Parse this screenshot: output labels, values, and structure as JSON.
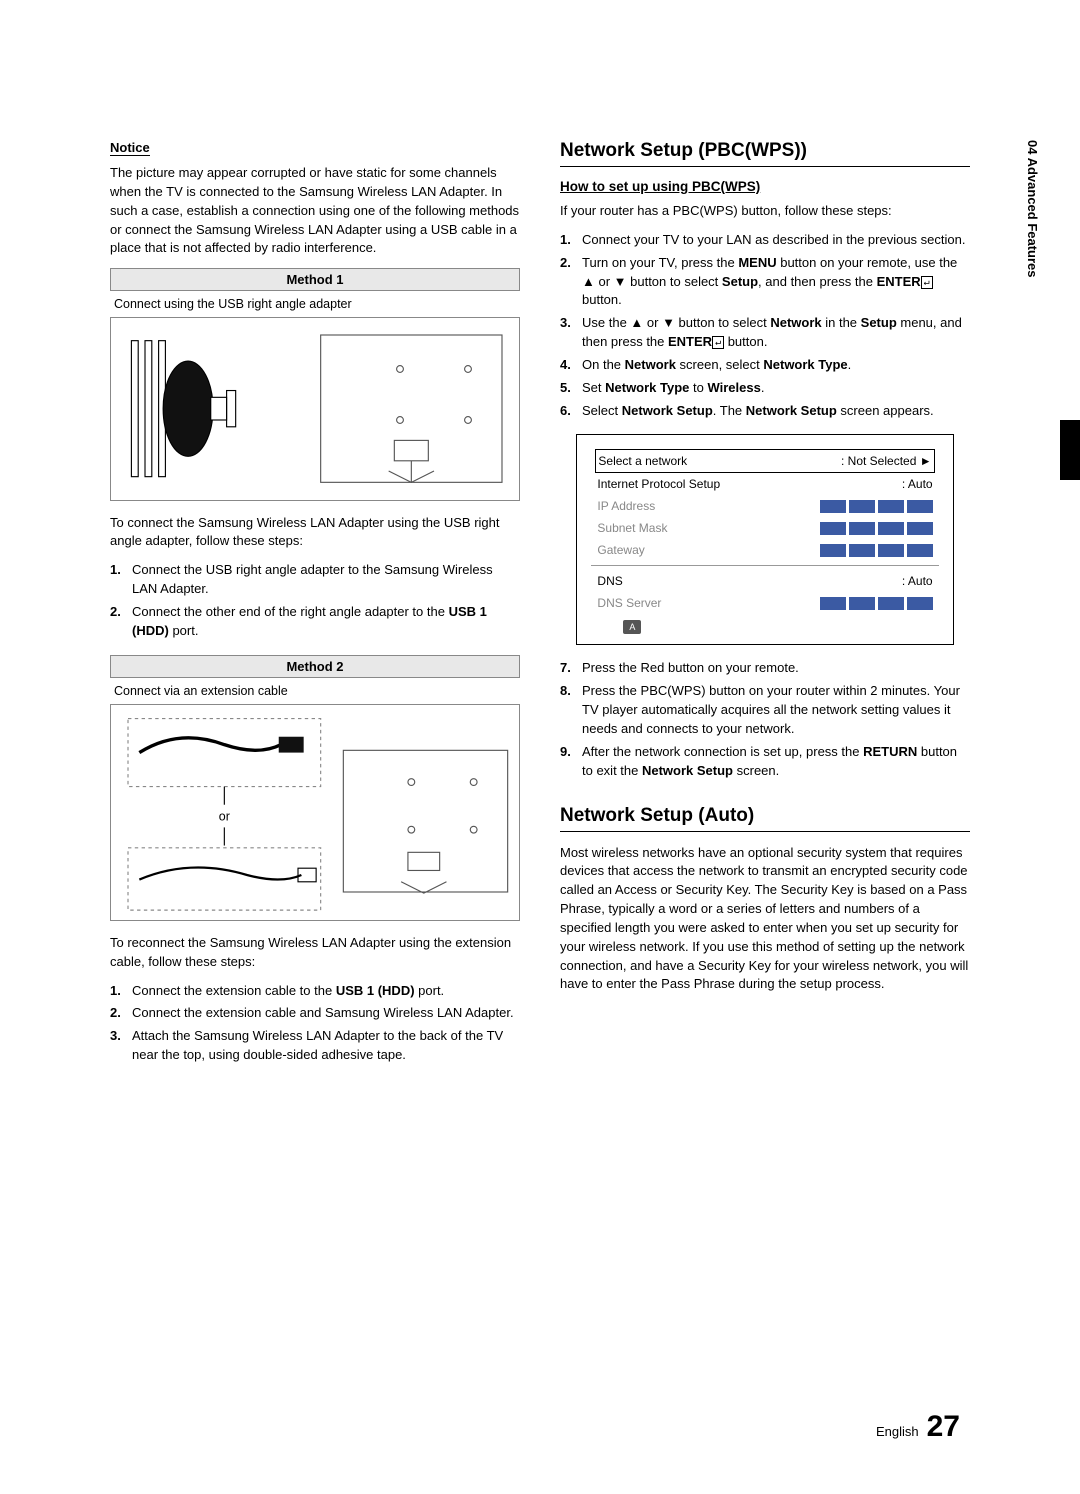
{
  "sideTab": "04   Advanced Features",
  "left": {
    "noticeLabel": "Notice",
    "noticePara": "The picture may appear corrupted or have static for some channels when the TV is connected to the Samsung Wireless LAN Adapter. In such a case, establish a connection using one of the following methods or connect the Samsung Wireless LAN Adapter using a USB cable in a place that is not affected by radio interference.",
    "method1Hdr": "Method 1",
    "method1Caption": "Connect using the USB right angle adapter",
    "method1Para": "To connect the Samsung Wireless LAN Adapter using the USB right angle adapter, follow these steps:",
    "method1Steps": [
      "Connect the USB right angle adapter to the Samsung Wireless LAN Adapter.",
      "Connect the other end of the right angle adapter to the USB 1 (HDD) port."
    ],
    "method2Hdr": "Method 2",
    "method2Caption": "Connect via an extension cable",
    "method2OrLabel": "or",
    "method2Para": "To reconnect the Samsung Wireless LAN Adapter using the extension cable, follow these steps:",
    "method2Steps": [
      "Connect the extension cable to the USB 1 (HDD) port.",
      "Connect the extension cable and Samsung Wireless LAN Adapter.",
      "Attach the Samsung Wireless LAN Adapter to the back of the TV near the top, using double-sided adhesive tape."
    ]
  },
  "right": {
    "h1a": "Network Setup (PBC(WPS))",
    "h2a": "How to set up using PBC(WPS)",
    "paraA": "If your router has a PBC(WPS) button, follow these steps:",
    "stepsA": [
      "Connect your TV to your LAN as described in the previous section.",
      "Turn on your TV, press the MENU button on your remote, use the ▲ or ▼ button to select Setup, and then press the ENTER button.",
      "Use the ▲ or ▼ button to select Network in the Setup menu, and then press the ENTER button.",
      "On the Network screen, select Network Type.",
      "Set Network Type to Wireless.",
      "Select Network Setup. The Network Setup screen appears."
    ],
    "screen": {
      "rows": [
        {
          "label": "Select a network",
          "value": ": Not Selected",
          "arrow": "►",
          "boxed": true
        },
        {
          "label": "Internet Protocol Setup",
          "value": ": Auto"
        },
        {
          "label": "IP Address",
          "dim": true,
          "ip": true
        },
        {
          "label": "Subnet Mask",
          "dim": true,
          "ip": true
        },
        {
          "label": "Gateway",
          "dim": true,
          "ip": true
        },
        {
          "sep": true
        },
        {
          "label": "DNS",
          "value": ": Auto"
        },
        {
          "label": "DNS Server",
          "dim": true,
          "ip": true
        }
      ],
      "ipBlockColor": "#3b5aa3",
      "btnA": "A"
    },
    "stepsB": [
      "Press the Red button on your remote.",
      "Press the PBC(WPS) button on your router within 2 minutes. Your TV player automatically acquires all the network setting values it needs and connects to your network.",
      "After the network connection is set up, press the RETURN button to exit the Network Setup screen."
    ],
    "h1b": "Network Setup (Auto)",
    "paraB": "Most wireless networks have an optional security system that requires devices that access the network to transmit an encrypted security code called an Access or Security Key. The Security Key is based on a Pass Phrase, typically a word or a series of letters and numbers of a specified length you were asked to enter when you set up security for your wireless network. If you use this method of setting up the network connection, and have a Security Key for your wireless network, you will have to enter the Pass Phrase during the setup process."
  },
  "footer": {
    "lang": "English",
    "page": "27"
  }
}
